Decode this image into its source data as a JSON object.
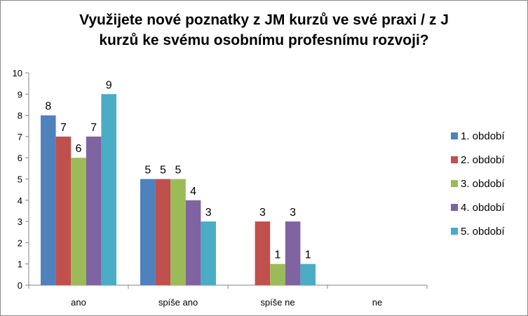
{
  "chart_data": {
    "type": "bar",
    "title_lines": [
      "Využijete nové poznatky z JM kurzů ve své praxi / z J",
      "kurzů ke svému osobnímu profesnímu rozvoji?"
    ],
    "categories": [
      "ano",
      "spíše ano",
      "spíše ne",
      "ne"
    ],
    "series": [
      {
        "name": "1. období",
        "color": "#4f81bd",
        "values": [
          8,
          5,
          0,
          0
        ]
      },
      {
        "name": "2. období",
        "color": "#c0504d",
        "values": [
          7,
          5,
          3,
          0
        ]
      },
      {
        "name": "3. období",
        "color": "#9bbb59",
        "values": [
          6,
          5,
          1,
          0
        ]
      },
      {
        "name": "4. období",
        "color": "#8064a2",
        "values": [
          7,
          4,
          3,
          0
        ]
      },
      {
        "name": "5. období",
        "color": "#4bacc6",
        "values": [
          9,
          3,
          1,
          0
        ]
      }
    ],
    "ylim": [
      0,
      10
    ],
    "yticks": [
      0,
      1,
      2,
      3,
      4,
      5,
      6,
      7,
      8,
      9,
      10
    ],
    "grid": false,
    "legend": "right"
  }
}
